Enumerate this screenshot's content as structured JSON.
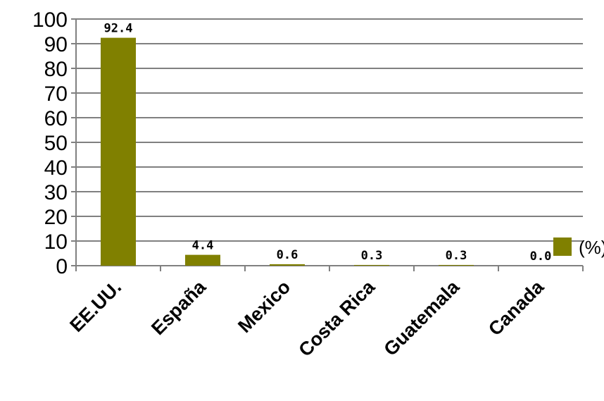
{
  "chart_data": {
    "type": "bar",
    "categories": [
      "EE.UU.",
      "España",
      "Mexico",
      "Costa Rica",
      "Guatemala",
      "Canada"
    ],
    "values": [
      92.4,
      4.4,
      0.6,
      0.3,
      0.3,
      0.0
    ],
    "data_labels": [
      "92.4",
      "4.4",
      "0.6",
      "0.3",
      "0.3",
      "0.0"
    ],
    "series": [
      {
        "name": "(%)",
        "values": [
          92.4,
          4.4,
          0.6,
          0.3,
          0.3,
          0.0
        ]
      }
    ],
    "yticks": [
      "0",
      "10",
      "20",
      "30",
      "40",
      "50",
      "60",
      "70",
      "80",
      "90",
      "100"
    ],
    "ylim": [
      0,
      100
    ],
    "grid": true,
    "legend_position": "right",
    "bar_color": "#808000",
    "xlabel": "",
    "ylabel": ""
  }
}
